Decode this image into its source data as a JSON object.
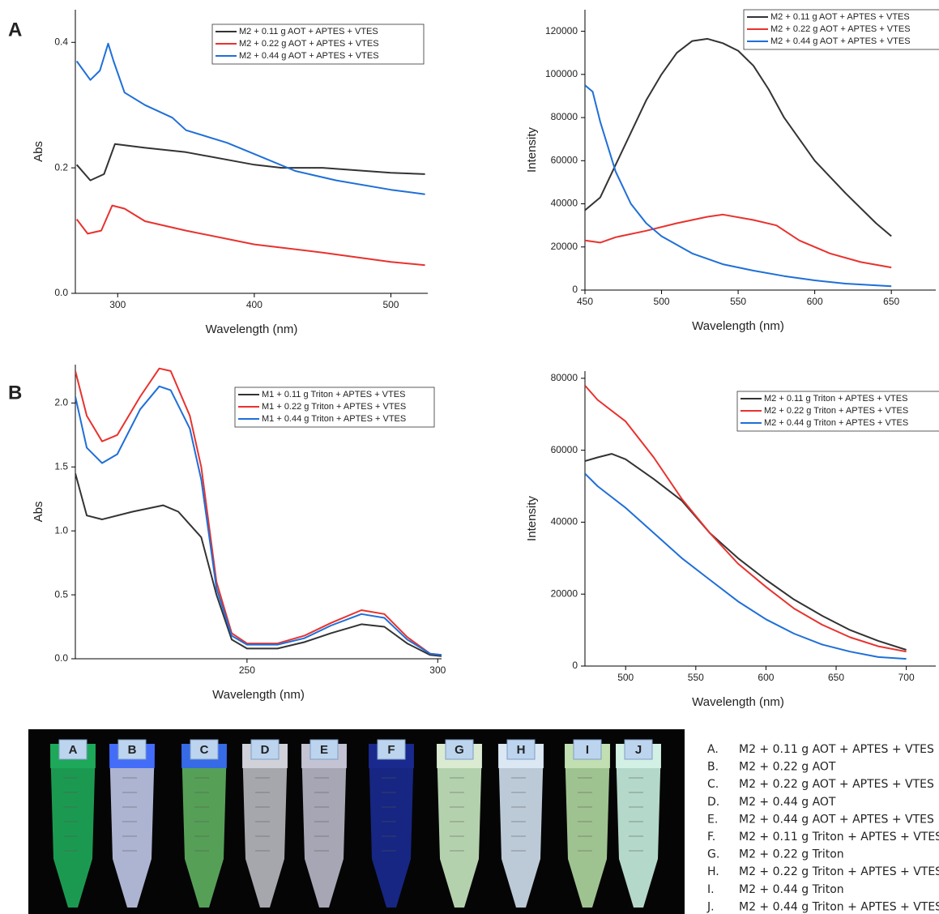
{
  "chart_data": [
    {
      "type": "line",
      "xlabel": "Wavelength (nm)",
      "ylabel": "Abs",
      "xlim": [
        269,
        527
      ],
      "ylim": [
        0,
        0.452
      ],
      "xticks": [
        300,
        400,
        500
      ],
      "yticks": [
        {
          "value": 0,
          "label": "0.0"
        },
        0.2,
        0.4
      ],
      "series": [
        {
          "name": "M2 + 0.11 g AOT + APTES + VTES",
          "color": "#333333",
          "x": [
            270,
            280,
            290,
            298,
            320,
            350,
            400,
            420,
            450,
            500,
            525
          ],
          "values": [
            0.205,
            0.18,
            0.19,
            0.238,
            0.232,
            0.225,
            0.205,
            0.2,
            0.2,
            0.192,
            0.19
          ]
        },
        {
          "name": "M2 + 0.22 g AOT + APTES + VTES",
          "color": "#e8322e",
          "x": [
            270,
            278,
            288,
            296,
            305,
            320,
            350,
            400,
            450,
            500,
            525
          ],
          "values": [
            0.118,
            0.095,
            0.1,
            0.14,
            0.135,
            0.115,
            0.1,
            0.078,
            0.065,
            0.05,
            0.045
          ]
        },
        {
          "name": "M2 + 0.44 g AOT + APTES + VTES",
          "color": "#1f6fd8",
          "x": [
            270,
            280,
            287,
            293,
            297,
            305,
            320,
            340,
            350,
            380,
            400,
            430,
            460,
            500,
            525
          ],
          "values": [
            0.37,
            0.34,
            0.355,
            0.398,
            0.37,
            0.32,
            0.3,
            0.28,
            0.26,
            0.24,
            0.222,
            0.195,
            0.18,
            0.165,
            0.158
          ]
        }
      ]
    },
    {
      "type": "line",
      "xlabel": "Wavelength (nm)",
      "ylabel": "Intensity",
      "xlim": [
        450,
        679
      ],
      "ylim": [
        0,
        130000
      ],
      "xticks": [
        450,
        500,
        550,
        600,
        650
      ],
      "yticks": [
        0,
        20000,
        40000,
        60000,
        80000,
        100000,
        120000
      ],
      "series": [
        {
          "name": "M2 + 0.11 g AOT + APTES + VTES",
          "color": "#333333",
          "x": [
            450,
            460,
            470,
            480,
            490,
            500,
            510,
            520,
            530,
            540,
            550,
            560,
            570,
            580,
            600,
            620,
            640,
            650
          ],
          "values": [
            37000,
            43000,
            58000,
            73000,
            88000,
            100000,
            110000,
            115500,
            116500,
            114500,
            111000,
            104000,
            93000,
            80000,
            60000,
            45000,
            31000,
            25000
          ]
        },
        {
          "name": "M2 + 0.22 g AOT + APTES + VTES",
          "color": "#e8322e",
          "x": [
            450,
            460,
            470,
            490,
            510,
            530,
            540,
            560,
            575,
            590,
            610,
            630,
            650
          ],
          "values": [
            23000,
            22000,
            24500,
            27500,
            31000,
            34000,
            35000,
            32500,
            30000,
            23000,
            17000,
            13000,
            10500
          ]
        },
        {
          "name": "M2 + 0.44 g AOT + APTES + VTES",
          "color": "#1f6fd8",
          "x": [
            450,
            455,
            460,
            470,
            480,
            490,
            500,
            520,
            540,
            560,
            580,
            600,
            620,
            650
          ],
          "values": [
            95000,
            92000,
            78000,
            55000,
            40000,
            31000,
            25000,
            17000,
            12000,
            9000,
            6500,
            4500,
            3000,
            1800
          ]
        }
      ]
    },
    {
      "type": "line",
      "xlabel": "Wavelength (nm)",
      "ylabel": "Abs",
      "xlim": [
        205,
        301
      ],
      "ylim": [
        0,
        2.3
      ],
      "xticks": [
        250,
        300
      ],
      "yticks": [
        {
          "value": 0,
          "label": "0.0"
        },
        0.5,
        {
          "value": 1,
          "label": "1.0"
        },
        1.5,
        {
          "value": 2,
          "label": "2.0"
        }
      ],
      "series": [
        {
          "name": "M1 + 0.11 g Triton + APTES + VTES",
          "color": "#333333",
          "x": [
            205,
            208,
            212,
            220,
            228,
            232,
            238,
            242,
            246,
            250,
            258,
            265,
            272,
            280,
            286,
            292,
            298,
            301
          ],
          "values": [
            1.45,
            1.12,
            1.09,
            1.15,
            1.2,
            1.15,
            0.95,
            0.5,
            0.15,
            0.08,
            0.08,
            0.13,
            0.2,
            0.27,
            0.25,
            0.12,
            0.03,
            0.02
          ]
        },
        {
          "name": "M1 + 0.22 g Triton + APTES + VTES",
          "color": "#e8322e",
          "x": [
            205,
            208,
            212,
            216,
            222,
            227,
            230,
            235,
            238,
            242,
            246,
            250,
            258,
            265,
            272,
            280,
            286,
            292,
            298,
            301
          ],
          "values": [
            2.25,
            1.9,
            1.7,
            1.75,
            2.05,
            2.27,
            2.25,
            1.9,
            1.5,
            0.6,
            0.2,
            0.12,
            0.12,
            0.18,
            0.28,
            0.38,
            0.35,
            0.17,
            0.04,
            0.03
          ]
        },
        {
          "name": "M1 + 0.44 g Triton + APTES + VTES",
          "color": "#1f6fd8",
          "x": [
            205,
            208,
            212,
            216,
            222,
            227,
            230,
            235,
            238,
            242,
            246,
            250,
            258,
            265,
            272,
            280,
            286,
            292,
            298,
            301
          ],
          "values": [
            2.05,
            1.65,
            1.53,
            1.6,
            1.95,
            2.13,
            2.1,
            1.8,
            1.4,
            0.55,
            0.18,
            0.11,
            0.11,
            0.16,
            0.26,
            0.35,
            0.32,
            0.15,
            0.04,
            0.03
          ]
        }
      ]
    },
    {
      "type": "line",
      "xlabel": "Wavelength (nm)",
      "ylabel": "Intensity",
      "xlim": [
        471,
        721
      ],
      "ylim": [
        0,
        82000
      ],
      "xticks": [
        500,
        550,
        600,
        650,
        700
      ],
      "yticks": [
        0,
        20000,
        40000,
        60000,
        80000
      ],
      "series": [
        {
          "name": "M2 + 0.11 g Triton + APTES + VTES",
          "color": "#333333",
          "x": [
            471,
            480,
            490,
            500,
            520,
            540,
            560,
            580,
            600,
            620,
            640,
            660,
            680,
            700
          ],
          "values": [
            57000,
            58000,
            59000,
            57500,
            52000,
            46000,
            37000,
            30000,
            24000,
            18500,
            14000,
            10000,
            7000,
            4500
          ]
        },
        {
          "name": "M2 + 0.22 g Triton + APTES + VTES",
          "color": "#e8322e",
          "x": [
            471,
            480,
            500,
            520,
            540,
            560,
            580,
            600,
            620,
            640,
            660,
            680,
            700
          ],
          "values": [
            78000,
            74000,
            68000,
            58000,
            46500,
            37000,
            28500,
            22000,
            16000,
            11500,
            8000,
            5500,
            4000
          ]
        },
        {
          "name": "M2 + 0.44 g Triton + APTES + VTES",
          "color": "#1f6fd8",
          "x": [
            471,
            480,
            500,
            520,
            540,
            560,
            580,
            600,
            620,
            640,
            660,
            680,
            700
          ],
          "values": [
            53500,
            50000,
            44000,
            37000,
            30000,
            24000,
            18000,
            13000,
            9000,
            6000,
            4000,
            2500,
            2000
          ]
        }
      ]
    }
  ],
  "panel_labels": [
    "A",
    "B"
  ],
  "photo": {
    "tube_labels": [
      "A",
      "B",
      "C",
      "D",
      "E",
      "F",
      "G",
      "H",
      "I",
      "J"
    ],
    "key": [
      {
        "letter": "A.",
        "text": "M2 + 0.11 g AOT + APTES + VTES"
      },
      {
        "letter": "B.",
        "text": "M2 + 0.22 g AOT"
      },
      {
        "letter": "C.",
        "text": "M2 + 0.22 g AOT + APTES + VTES"
      },
      {
        "letter": "D.",
        "text": "M2 + 0.44 g AOT"
      },
      {
        "letter": "E.",
        "text": "M2 + 0.44 g AOT + APTES + VTES"
      },
      {
        "letter": "F.",
        "text": "M2 + 0.11 g Triton + APTES + VTES"
      },
      {
        "letter": "G.",
        "text": "M2 + 0.22 g Triton"
      },
      {
        "letter": "H.",
        "text": "M2 + 0.22 g Triton + APTES + VTES"
      },
      {
        "letter": "I.",
        "text": "M2 + 0.44 g Triton"
      },
      {
        "letter": "J.",
        "text": "M2 + 0.44 g Triton + APTES + VTES"
      }
    ]
  }
}
